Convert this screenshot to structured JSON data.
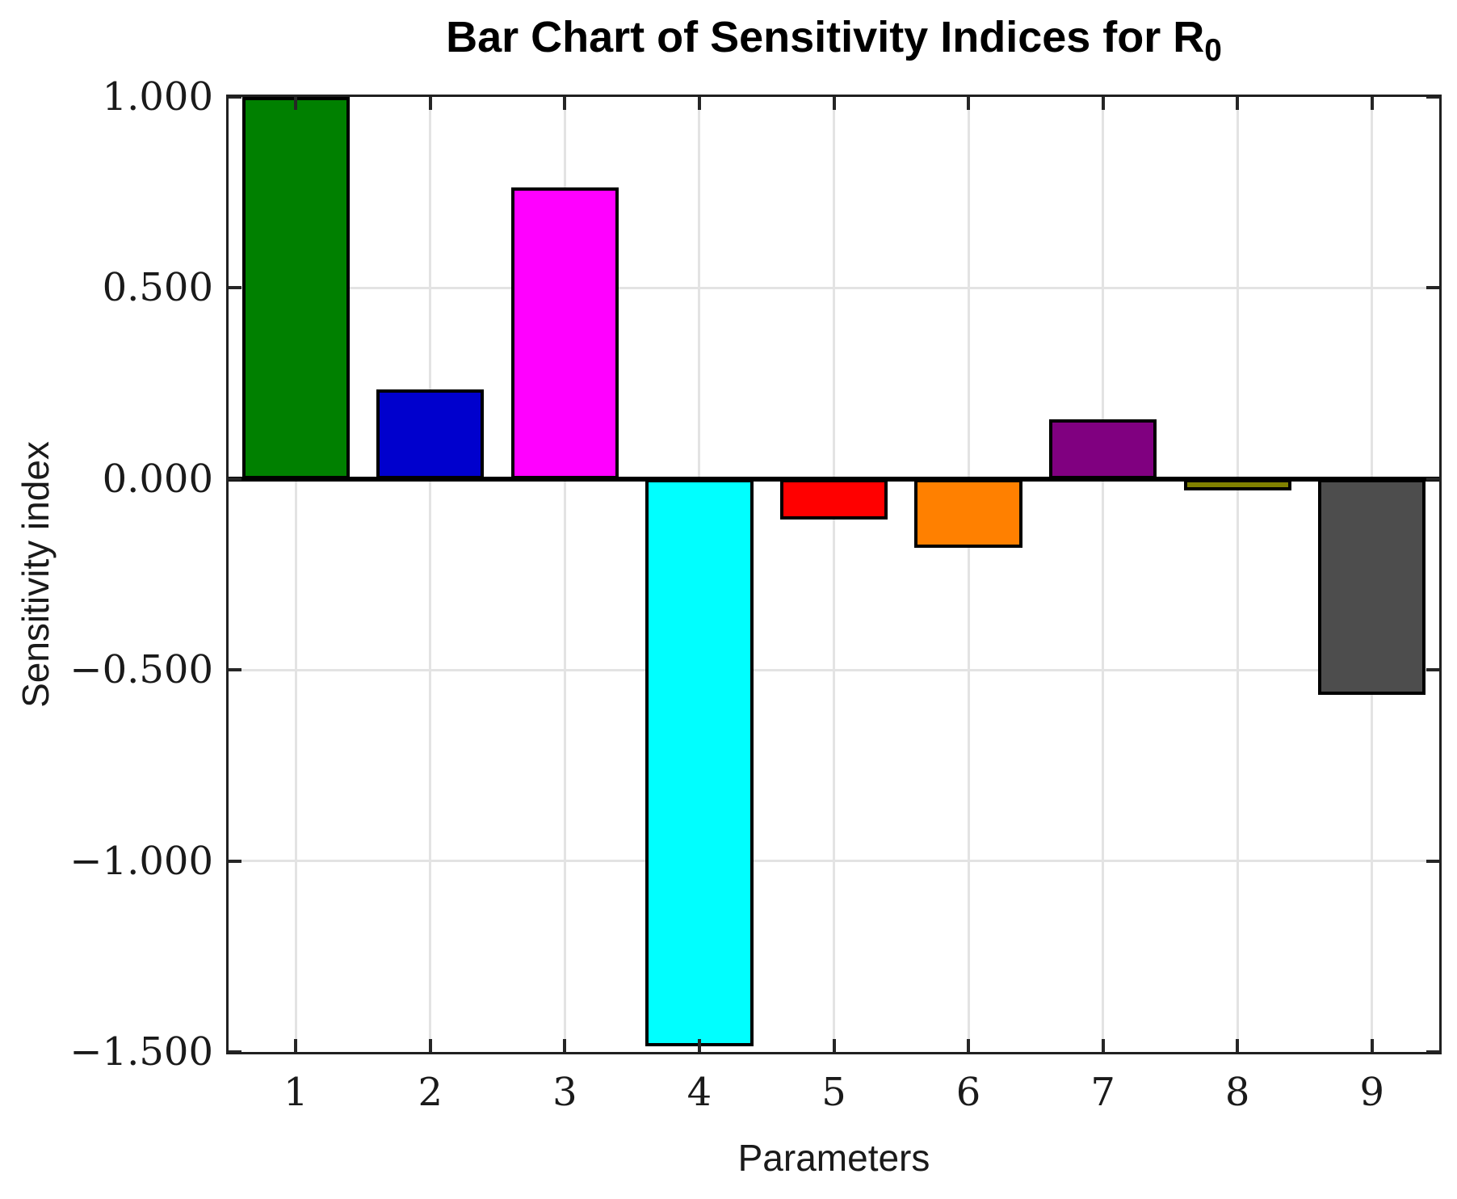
{
  "chart_data": {
    "type": "bar",
    "title_main": "Bar Chart of Sensitivity Indices for R",
    "title_sub": "0",
    "xlabel": "Parameters",
    "ylabel": "Sensitivity index",
    "categories": [
      "1",
      "2",
      "3",
      "4",
      "5",
      "6",
      "7",
      "8",
      "9"
    ],
    "values": [
      1.0,
      0.234,
      0.763,
      -1.486,
      -0.106,
      -0.18,
      0.156,
      -0.03,
      -0.565
    ],
    "bar_colors": [
      "#008000",
      "#0000CD",
      "#FF00FF",
      "#00FFFF",
      "#FF0000",
      "#FF8000",
      "#800080",
      "#808000",
      "#4D4D4D"
    ],
    "bar_edge_color": "#000000",
    "ylim": [
      -1.5,
      1.0
    ],
    "ytick_values": [
      1.0,
      0.5,
      0.0,
      -0.5,
      -1.0,
      -1.5
    ],
    "ytick_labels": [
      "1.000",
      "0.500",
      "0.000",
      "−0.500",
      "−1.000",
      "−1.500"
    ],
    "grid": true,
    "grid_color": "#E3E3E3",
    "legend": null,
    "bar_width_fraction": 0.8
  }
}
